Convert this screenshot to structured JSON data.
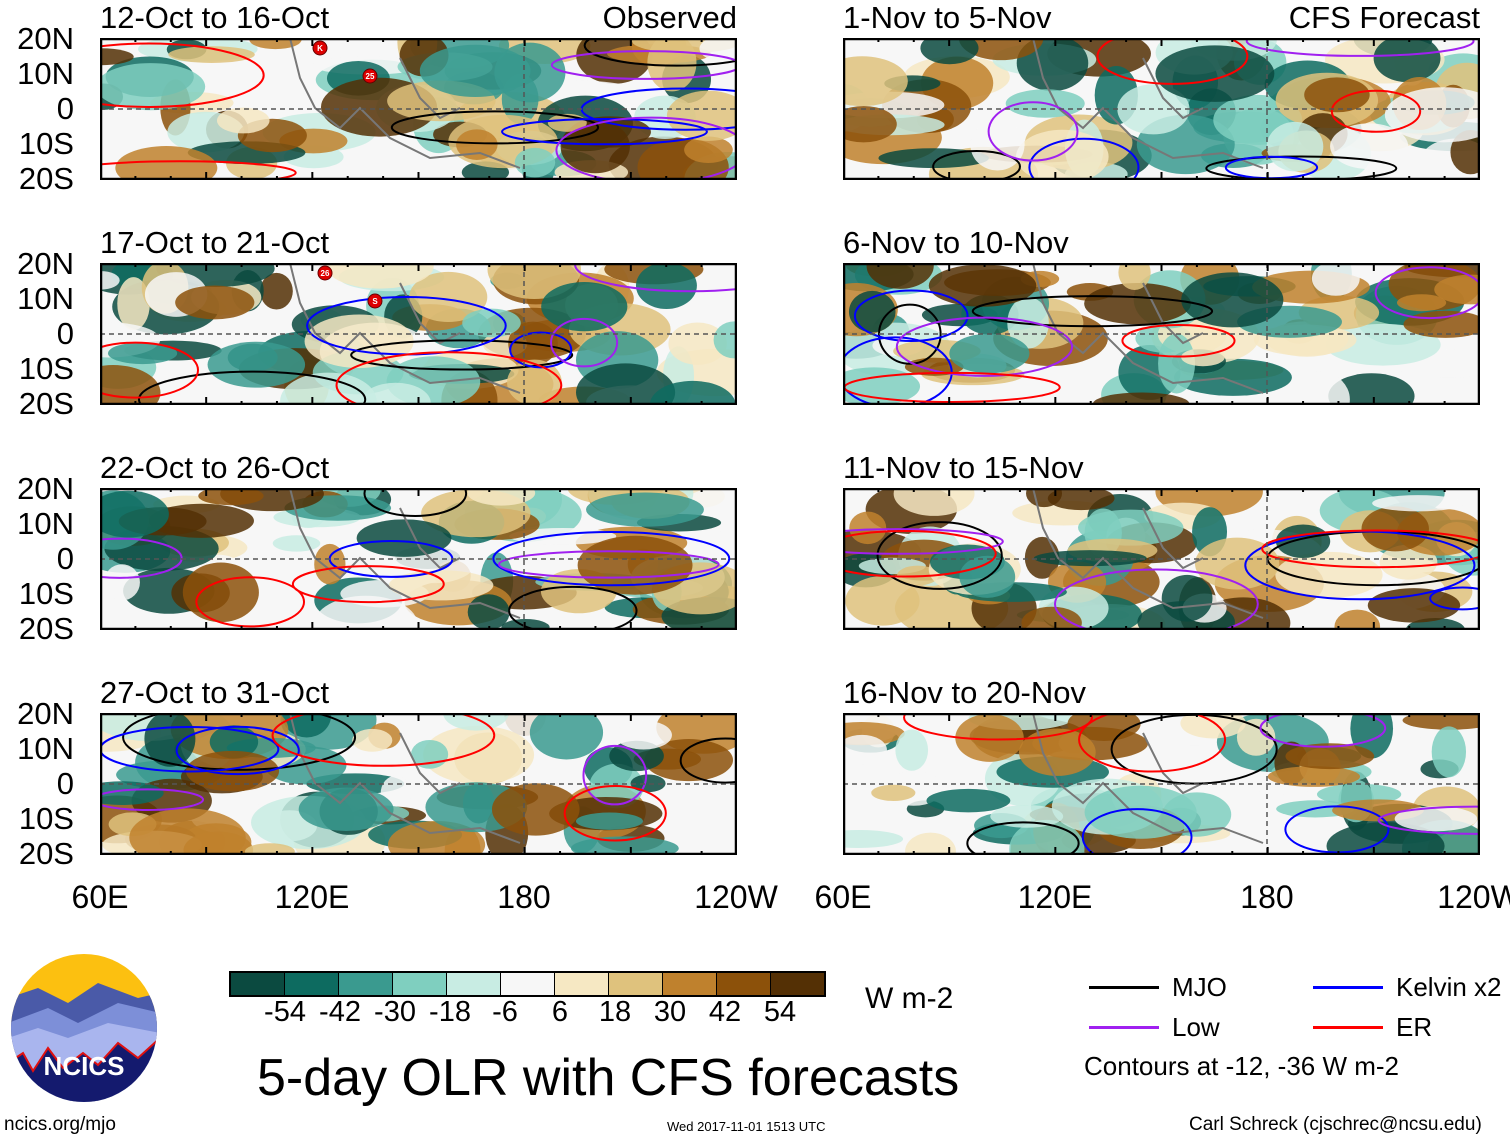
{
  "panels": [
    {
      "title": "12-Oct to 16-Oct",
      "tag": "Observed",
      "col": 0,
      "row": 0,
      "storms": [
        "K",
        "25"
      ]
    },
    {
      "title": "17-Oct to 21-Oct",
      "tag": "",
      "col": 0,
      "row": 1,
      "storms": [
        "26",
        "S"
      ]
    },
    {
      "title": "22-Oct to 26-Oct",
      "tag": "",
      "col": 0,
      "row": 2,
      "storms": []
    },
    {
      "title": "27-Oct to 31-Oct",
      "tag": "",
      "col": 0,
      "row": 3,
      "storms": []
    },
    {
      "title": "1-Nov to 5-Nov",
      "tag": "CFS Forecast",
      "col": 1,
      "row": 0,
      "storms": []
    },
    {
      "title": "6-Nov to 10-Nov",
      "tag": "",
      "col": 1,
      "row": 1,
      "storms": []
    },
    {
      "title": "11-Nov to 15-Nov",
      "tag": "",
      "col": 1,
      "row": 2,
      "storms": []
    },
    {
      "title": "16-Nov to 20-Nov",
      "tag": "",
      "col": 1,
      "row": 3,
      "storms": []
    }
  ],
  "lat_labels": [
    "20N",
    "10N",
    "0",
    "10S",
    "20S"
  ],
  "lon_labels": [
    "60E",
    "120E",
    "180",
    "120W"
  ],
  "colorbar": {
    "colors": [
      "#0b4a40",
      "#0d6b60",
      "#3a9a8f",
      "#7fcfbf",
      "#c8ece3",
      "#f7f7f7",
      "#f6e8c3",
      "#dfc27d",
      "#bf812d",
      "#8c510a",
      "#543005"
    ],
    "labels": [
      "-54",
      "-42",
      "-30",
      "-18",
      "-6",
      "6",
      "18",
      "30",
      "42",
      "54"
    ],
    "units": "W m-2"
  },
  "legend": {
    "items": [
      {
        "label": "MJO",
        "color": "#000000"
      },
      {
        "label": "Kelvin x2",
        "color": "#0000ff"
      },
      {
        "label": "Low",
        "color": "#a020f0"
      },
      {
        "label": "ER",
        "color": "#ff0000"
      }
    ],
    "note": "Contours at -12, -36 W m-2"
  },
  "title": "5-day OLR with CFS forecasts",
  "logo_text": "NCICS",
  "footer": {
    "url": "ncics.org/mjo",
    "timestamp": "Wed 2017-11-01 1513 UTC",
    "credit": "Carl Schreck (cjschrec@ncsu.edu)"
  }
}
